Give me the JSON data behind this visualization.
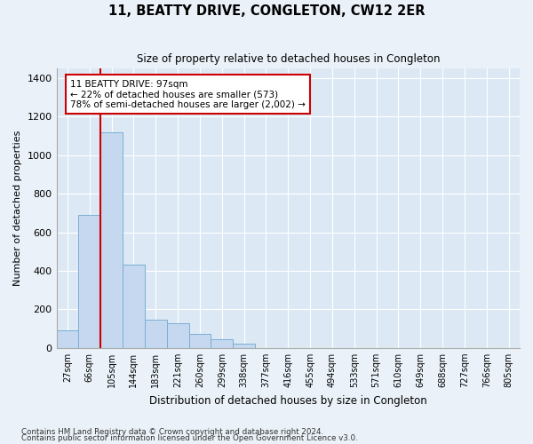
{
  "title": "11, BEATTY DRIVE, CONGLETON, CW12 2ER",
  "subtitle": "Size of property relative to detached houses in Congleton",
  "xlabel": "Distribution of detached houses by size in Congleton",
  "ylabel": "Number of detached properties",
  "bar_color": "#c5d8ef",
  "bar_edge_color": "#7aafd4",
  "background_color": "#dce9f5",
  "fig_background_color": "#eaf1f8",
  "grid_color": "#ffffff",
  "categories": [
    "27sqm",
    "66sqm",
    "105sqm",
    "144sqm",
    "183sqm",
    "221sqm",
    "260sqm",
    "299sqm",
    "338sqm",
    "377sqm",
    "416sqm",
    "455sqm",
    "494sqm",
    "533sqm",
    "571sqm",
    "610sqm",
    "649sqm",
    "688sqm",
    "727sqm",
    "766sqm",
    "805sqm"
  ],
  "values": [
    90,
    690,
    1120,
    430,
    145,
    130,
    75,
    45,
    20,
    0,
    0,
    0,
    0,
    0,
    0,
    0,
    0,
    0,
    0,
    0,
    0
  ],
  "ylim": [
    0,
    1450
  ],
  "yticks": [
    0,
    200,
    400,
    600,
    800,
    1000,
    1200,
    1400
  ],
  "property_line_x": 1.5,
  "annotation_title": "11 BEATTY DRIVE: 97sqm",
  "annotation_line1": "← 22% of detached houses are smaller (573)",
  "annotation_line2": "78% of semi-detached houses are larger (2,002) →",
  "annotation_box_color": "#ffffff",
  "annotation_box_edge_color": "#cc0000",
  "property_line_color": "#cc0000",
  "footnote1": "Contains HM Land Registry data © Crown copyright and database right 2024.",
  "footnote2": "Contains public sector information licensed under the Open Government Licence v3.0."
}
